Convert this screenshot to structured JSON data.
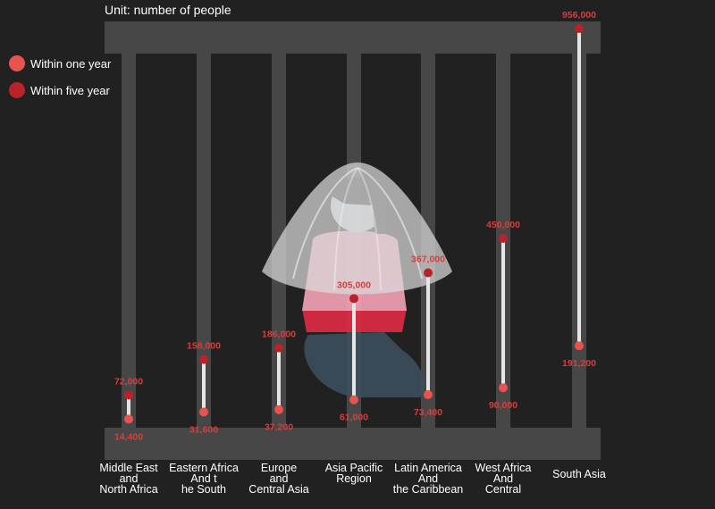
{
  "unit_label": "Unit: number of people",
  "colors": {
    "background": "#212121",
    "bars": "#474747",
    "within_one_year": "#e8534e",
    "within_five_year": "#b8232a",
    "value_label": "#d93d3d",
    "connector": "#e6e6e6"
  },
  "legend": [
    {
      "label": "Within one year",
      "color": "#e8534e"
    },
    {
      "label": "Within five year",
      "color": "#b8232a"
    }
  ],
  "chart_data": {
    "type": "dumbbell",
    "title": "",
    "xlabel": "",
    "ylabel": "",
    "ylim": [
      0,
      956000
    ],
    "grid": false,
    "legend_position": "left",
    "categories": [
      {
        "lines": [
          "Middle East",
          "and",
          "North Africa"
        ]
      },
      {
        "lines": [
          "Eastern Africa",
          "And t",
          "he South"
        ]
      },
      {
        "lines": [
          "Europe",
          "and",
          "Central Asia"
        ]
      },
      {
        "lines": [
          "Asia Pacific",
          "Region"
        ]
      },
      {
        "lines": [
          "Latin America",
          "And",
          "the Caribbean"
        ]
      },
      {
        "lines": [
          "West Africa",
          "And",
          "Central"
        ]
      },
      {
        "lines": [
          "South Asia"
        ]
      }
    ],
    "series": [
      {
        "name": "Within one year",
        "values": [
          14400,
          31600,
          37200,
          61000,
          73400,
          90000,
          191200
        ],
        "labels": [
          "14,400",
          "31,600",
          "37,200",
          "61,000",
          "73,400",
          "90,000",
          "191,200"
        ]
      },
      {
        "name": "Within five year",
        "values": [
          72000,
          158000,
          186000,
          305000,
          367000,
          450000,
          956000
        ],
        "labels": [
          "72,000",
          "158,000",
          "186,000",
          "305,000",
          "367,000",
          "450,000",
          "956,000"
        ]
      }
    ]
  }
}
